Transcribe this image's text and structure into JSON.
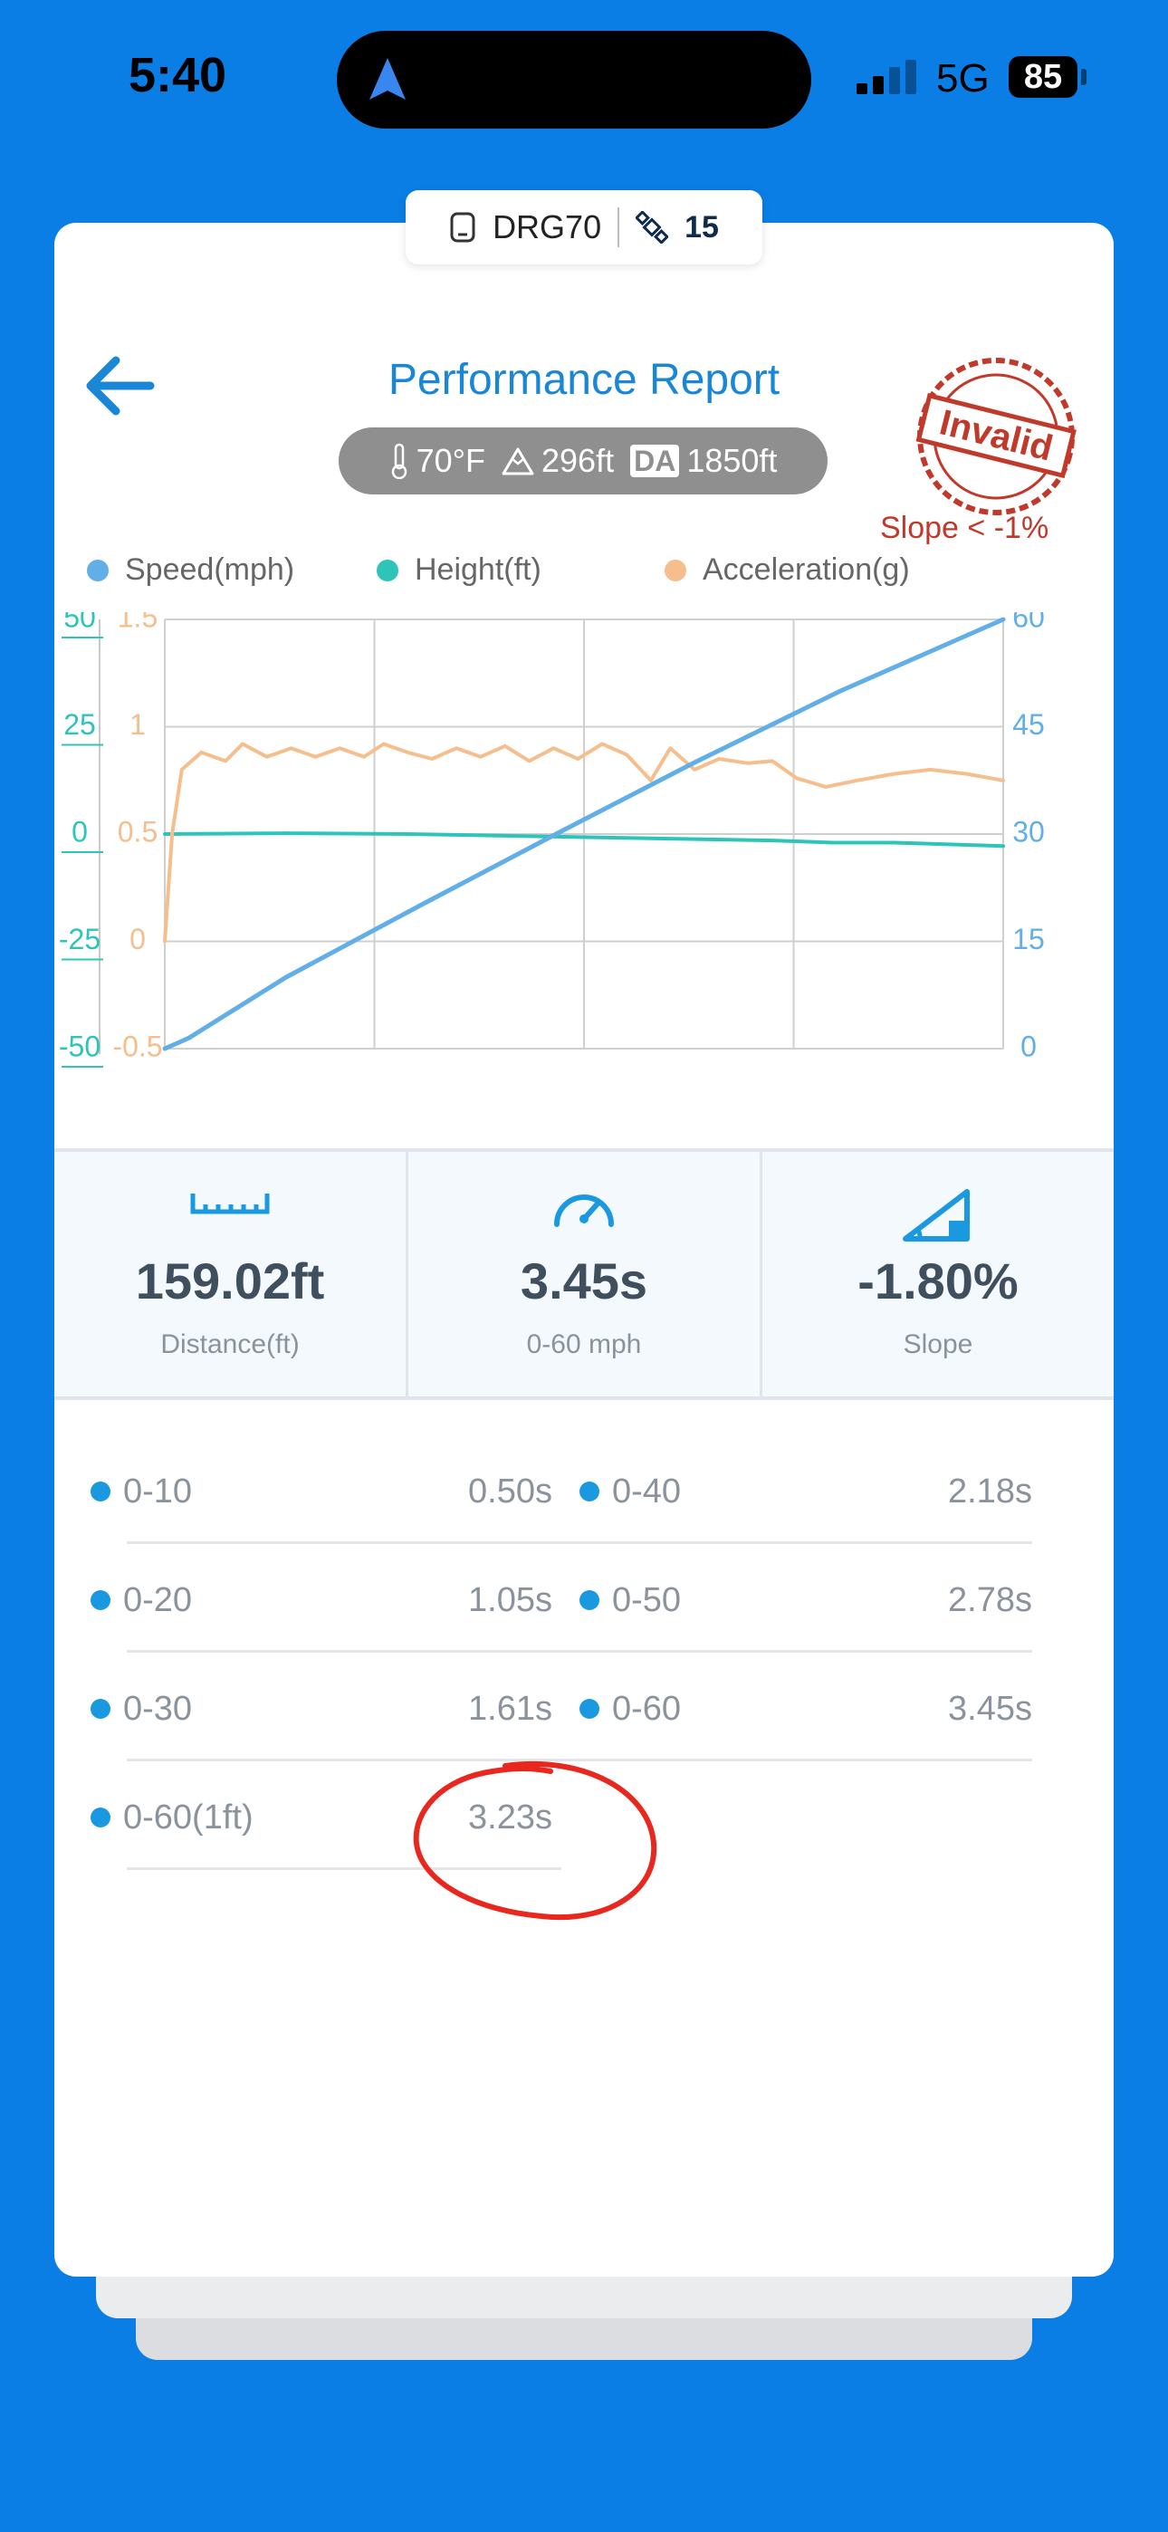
{
  "status_bar": {
    "time": "5:40",
    "network": "5G",
    "battery": "85"
  },
  "device": {
    "name": "DRG70",
    "satellites": "15"
  },
  "header": {
    "title": "Performance Report",
    "stamp_text": "Invalid",
    "warning": "Slope < -1%"
  },
  "conditions": {
    "temperature": "70°F",
    "elevation": "296ft",
    "da_label": "DA",
    "density_altitude": "1850ft"
  },
  "legend": [
    {
      "label": "Speed(mph)",
      "color": "#62aee6"
    },
    {
      "label": "Height(ft)",
      "color": "#2ec4b9"
    },
    {
      "label": "Acceleration(g)",
      "color": "#f5be8c"
    }
  ],
  "chart_data": {
    "type": "line",
    "axes": {
      "height_ticks": [
        "50",
        "25",
        "0",
        "-25",
        "-50"
      ],
      "accel_ticks": [
        "1.5",
        "1",
        "0.5",
        "0",
        "-0.5"
      ],
      "speed_ticks": [
        "60",
        "45",
        "30",
        "15",
        "0"
      ],
      "height_range": [
        -50,
        50
      ],
      "accel_range": [
        -0.5,
        1.5
      ],
      "speed_range": [
        0,
        60
      ],
      "x_range": [
        0,
        3.45
      ],
      "grid": true
    },
    "series": [
      {
        "name": "Speed(mph)",
        "axis": "speed",
        "color": "#62aee6",
        "points": [
          [
            0,
            0
          ],
          [
            0.1,
            1.5
          ],
          [
            0.5,
            10
          ],
          [
            1.05,
            20
          ],
          [
            1.61,
            30
          ],
          [
            2.18,
            40
          ],
          [
            2.78,
            50
          ],
          [
            3.45,
            60
          ]
        ]
      },
      {
        "name": "Height(ft)",
        "axis": "height",
        "color": "#2ec4b9",
        "points": [
          [
            0,
            0
          ],
          [
            0.5,
            0.2
          ],
          [
            1,
            0
          ],
          [
            1.5,
            -0.5
          ],
          [
            2,
            -1
          ],
          [
            2.5,
            -1.5
          ],
          [
            2.75,
            -2
          ],
          [
            3,
            -2
          ],
          [
            3.45,
            -2.8
          ]
        ]
      },
      {
        "name": "Acceleration(g)",
        "axis": "accel",
        "color": "#f5be8c",
        "points": [
          [
            0,
            0
          ],
          [
            0.03,
            0.5
          ],
          [
            0.07,
            0.8
          ],
          [
            0.15,
            0.88
          ],
          [
            0.25,
            0.84
          ],
          [
            0.32,
            0.92
          ],
          [
            0.42,
            0.86
          ],
          [
            0.52,
            0.9
          ],
          [
            0.62,
            0.86
          ],
          [
            0.72,
            0.9
          ],
          [
            0.82,
            0.86
          ],
          [
            0.9,
            0.92
          ],
          [
            1,
            0.88
          ],
          [
            1.1,
            0.85
          ],
          [
            1.2,
            0.9
          ],
          [
            1.3,
            0.86
          ],
          [
            1.4,
            0.91
          ],
          [
            1.5,
            0.84
          ],
          [
            1.6,
            0.9
          ],
          [
            1.7,
            0.85
          ],
          [
            1.8,
            0.92
          ],
          [
            1.9,
            0.87
          ],
          [
            2,
            0.75
          ],
          [
            2.08,
            0.9
          ],
          [
            2.18,
            0.8
          ],
          [
            2.28,
            0.85
          ],
          [
            2.4,
            0.83
          ],
          [
            2.5,
            0.84
          ],
          [
            2.6,
            0.76
          ],
          [
            2.72,
            0.72
          ],
          [
            2.85,
            0.75
          ],
          [
            3,
            0.78
          ],
          [
            3.15,
            0.8
          ],
          [
            3.3,
            0.78
          ],
          [
            3.45,
            0.75
          ]
        ]
      }
    ]
  },
  "stats": [
    {
      "value": "159.02ft",
      "label": "Distance(ft)",
      "icon": "ruler-icon"
    },
    {
      "value": "3.45s",
      "label": "0-60 mph",
      "icon": "speedometer-icon"
    },
    {
      "value": "-1.80%",
      "label": "Slope",
      "icon": "slope-icon"
    }
  ],
  "splits": [
    {
      "name": "0-10",
      "time": "0.50s"
    },
    {
      "name": "0-40",
      "time": "2.18s"
    },
    {
      "name": "0-20",
      "time": "1.05s"
    },
    {
      "name": "0-50",
      "time": "2.78s"
    },
    {
      "name": "0-30",
      "time": "1.61s"
    },
    {
      "name": "0-60",
      "time": "3.45s"
    },
    {
      "name": "0-60(1ft)",
      "time": "3.23s"
    }
  ]
}
